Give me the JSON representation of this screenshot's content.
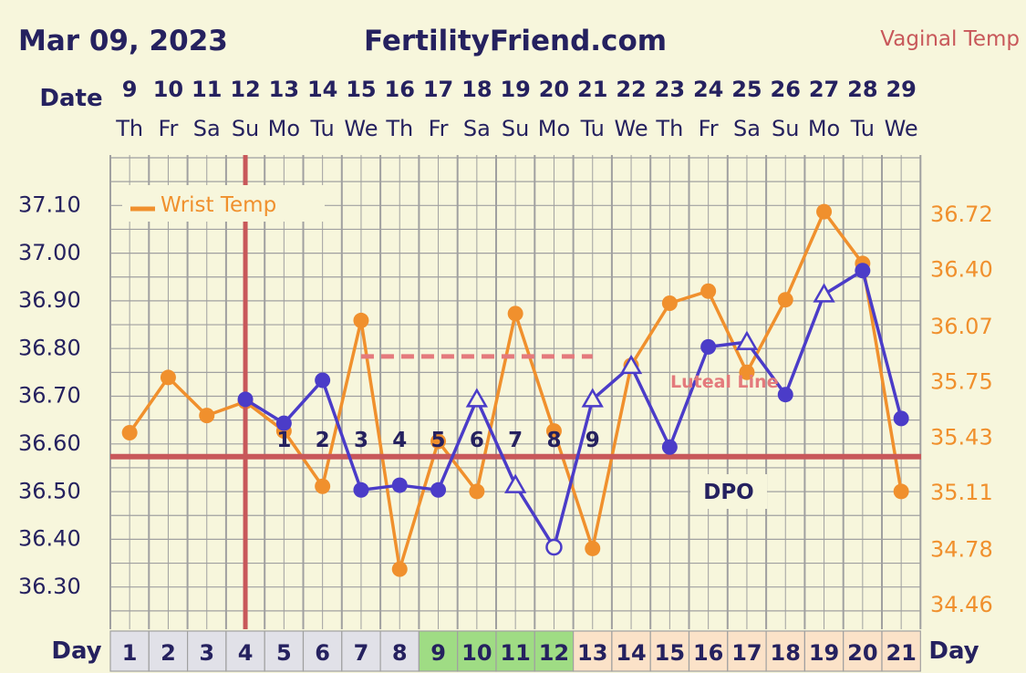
{
  "header": {
    "date": "Mar 09, 2023",
    "site": "FertilityFriend.com",
    "temp_type": "Vaginal Temp"
  },
  "labels": {
    "date_row": "Date",
    "day_row": "Day",
    "day_row_right": "Day",
    "dpo": "DPO",
    "luteal": "Luteal Line",
    "legend_wrist": "Wrist Temp"
  },
  "colors": {
    "background": "#f7f6dc",
    "grid": "#a0a0a0",
    "primary": "#4b3cc8",
    "secondary": "#f0902d",
    "coverline": "#c8585a",
    "luteal": "#e47a7c",
    "navy": "#25215f",
    "day_gray": "#e1e1e8",
    "day_green": "#9fdc84",
    "day_peach": "#fbe2c8"
  },
  "chart_data": {
    "type": "line",
    "dates": [
      "9",
      "10",
      "11",
      "12",
      "13",
      "14",
      "15",
      "16",
      "17",
      "18",
      "19",
      "20",
      "21",
      "22",
      "23",
      "24",
      "25",
      "26",
      "27",
      "28",
      "29"
    ],
    "weekdays": [
      "Th",
      "Fr",
      "Sa",
      "Su",
      "Mo",
      "Tu",
      "We",
      "Th",
      "Fr",
      "Sa",
      "Su",
      "Mo",
      "Tu",
      "We",
      "Th",
      "Fr",
      "Sa",
      "Su",
      "Mo",
      "Tu",
      "We"
    ],
    "cycle_days": [
      "1",
      "2",
      "3",
      "4",
      "5",
      "6",
      "7",
      "8",
      "9",
      "10",
      "11",
      "12",
      "13",
      "14",
      "15",
      "16",
      "17",
      "18",
      "19",
      "20",
      "21"
    ],
    "cycle_day_shading": [
      "gray",
      "gray",
      "gray",
      "gray",
      "gray",
      "gray",
      "gray",
      "gray",
      "green",
      "green",
      "green",
      "green",
      "peach",
      "peach",
      "peach",
      "peach",
      "peach",
      "peach",
      "peach",
      "peach",
      "peach"
    ],
    "dpo_numbers": [
      "1",
      "2",
      "3",
      "4",
      "5",
      "6",
      "7",
      "8",
      "9"
    ],
    "y_left": {
      "ticks": [
        "37.10",
        "37.00",
        "36.90",
        "36.80",
        "36.70",
        "36.60",
        "36.50",
        "36.40",
        "36.30"
      ],
      "range": [
        36.24,
        37.18
      ]
    },
    "y_right": {
      "ticks": [
        "36.72",
        "36.40",
        "36.07",
        "35.75",
        "35.43",
        "35.11",
        "34.78",
        "34.46"
      ],
      "range": [
        34.46,
        36.72
      ]
    },
    "series": [
      {
        "name": "Vaginal Temp",
        "axis": "left",
        "values": [
          null,
          null,
          null,
          36.69,
          36.64,
          36.73,
          36.5,
          36.51,
          36.5,
          36.69,
          36.51,
          36.38,
          36.69,
          36.76,
          36.59,
          36.8,
          36.81,
          36.7,
          36.91,
          36.96,
          36.65
        ],
        "markers": [
          null,
          null,
          null,
          "dot",
          "dot",
          "dot",
          "dot",
          "dot",
          "dot",
          "triangle",
          "triangle",
          "open-circle",
          "triangle",
          "triangle",
          "dot",
          "dot",
          "triangle",
          "dot",
          "triangle",
          "dot",
          "dot"
        ]
      },
      {
        "name": "Wrist Temp",
        "axis": "right",
        "values": [
          35.45,
          35.77,
          35.55,
          35.63,
          35.46,
          35.14,
          36.1,
          34.66,
          35.4,
          35.11,
          36.14,
          35.46,
          34.78,
          35.84,
          36.2,
          36.27,
          35.8,
          36.22,
          36.73,
          36.43,
          35.11
        ]
      }
    ],
    "coverline": 36.57,
    "ovulation_day": "12",
    "luteal_line": {
      "value": 36.78,
      "from_day": "15",
      "to_day": "21"
    }
  }
}
